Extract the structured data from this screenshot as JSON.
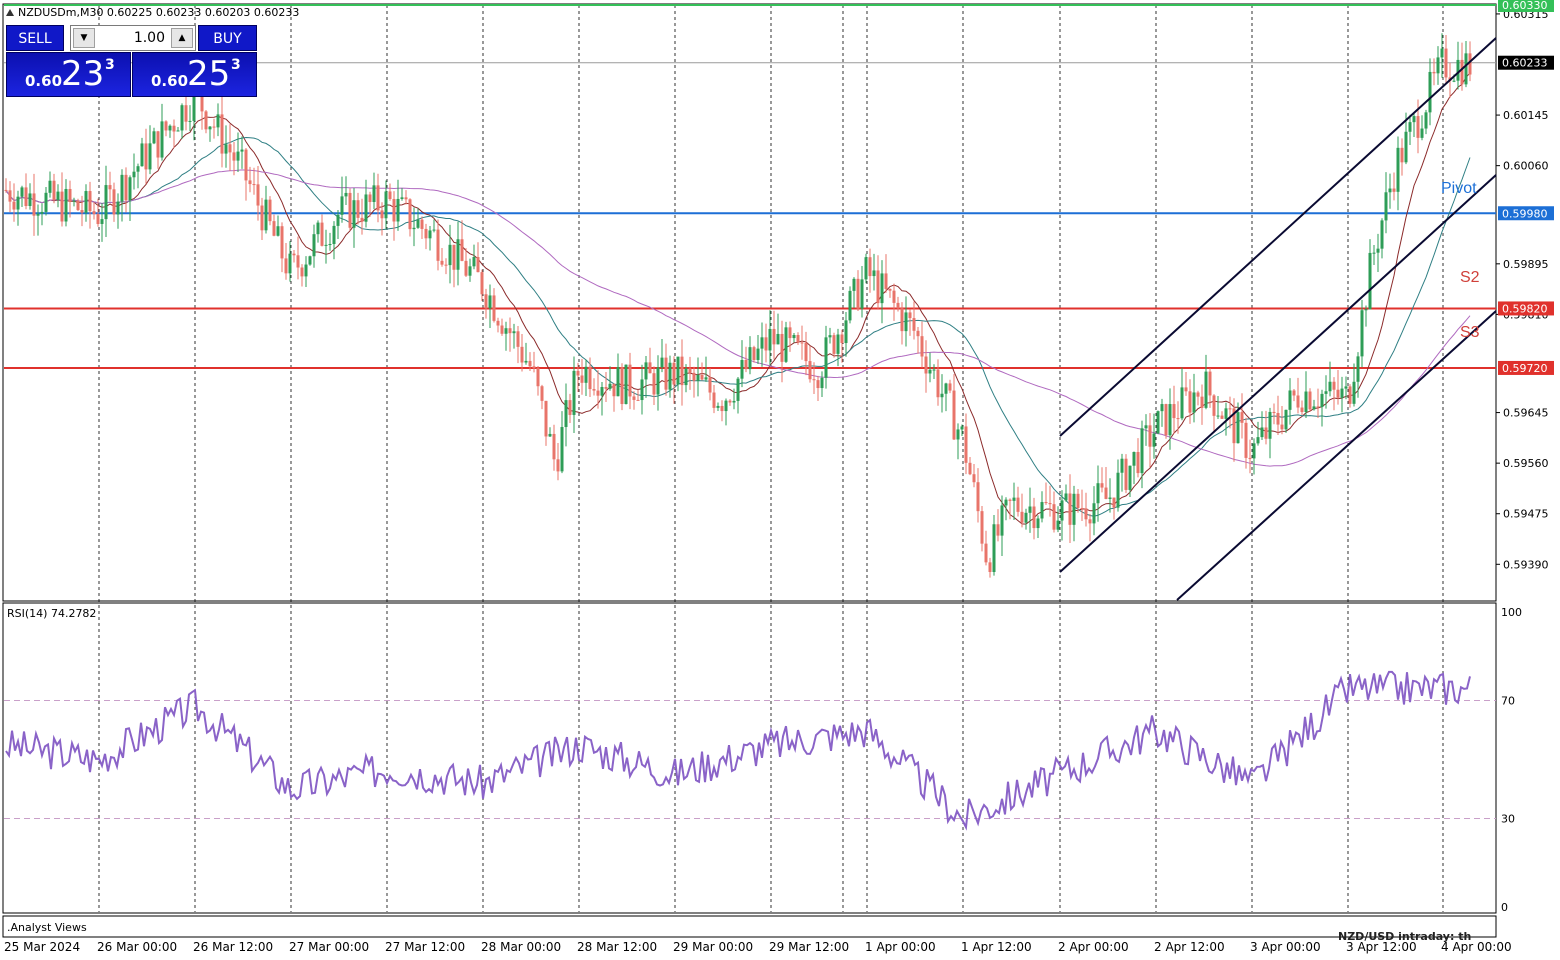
{
  "chart_title": "NZDUSDm,M30  0.60225 0.60233 0.60203 0.60233",
  "trade_panel": {
    "sell_label": "SELL",
    "buy_label": "BUY",
    "lot_value": "1.00",
    "sell_price_prefix": "0.60",
    "sell_price_big": "23",
    "sell_price_sup": "3",
    "buy_price_prefix": "0.60",
    "buy_price_big": "25",
    "buy_price_sup": "3"
  },
  "colors": {
    "bull": "#2e9d57",
    "bear": "#e8746a",
    "pivot_line": "#1c6fd6",
    "support_line": "#e0312c",
    "resistance_line": "#34c058",
    "channel": "#0a0a32",
    "rsi": "#8a63c8",
    "ma_fast": "#8b2a2a",
    "ma_mid": "#2f7f84",
    "ma_slow": "#b06ac0"
  },
  "chart_data": [
    {
      "type": "candlestick",
      "title": "NZDUSDm,M30  0.60225 0.60233 0.60203 0.60233",
      "ylim": [
        0.5933,
        0.6033
      ],
      "y_ticks": [
        "0.60315",
        "0.60145",
        "0.60060",
        "0.59895",
        "0.59810",
        "0.59645",
        "0.59560",
        "0.59475",
        "0.59390"
      ],
      "x_tick_labels": [
        "25 Mar 2024",
        "26 Mar 00:00",
        "26 Mar 12:00",
        "27 Mar 00:00",
        "27 Mar 12:00",
        "28 Mar 00:00",
        "28 Mar 12:00",
        "29 Mar 00:00",
        "29 Mar 12:00",
        "1 Apr 00:00",
        "1 Apr 12:00",
        "2 Apr 00:00",
        "2 Apr 12:00",
        "3 Apr 00:00",
        "3 Apr 12:00",
        "4 Apr 00:00"
      ],
      "close_path": [
        [
          "25 Mar 2024",
          0.6002
        ],
        [
          "26 Mar 00:00",
          0.5998
        ],
        [
          "26 Mar 06:00",
          0.6008
        ],
        [
          "26 Mar 12:00",
          0.6018
        ],
        [
          "26 Mar 18:00",
          0.6005
        ],
        [
          "27 Mar 00:00",
          0.5988
        ],
        [
          "27 Mar 06:00",
          0.5998
        ],
        [
          "27 Mar 12:00",
          0.6
        ],
        [
          "27 Mar 18:00",
          0.5994
        ],
        [
          "28 Mar 00:00",
          0.5986
        ],
        [
          "28 Mar 06:00",
          0.5972
        ],
        [
          "28 Mar 09:00",
          0.5956
        ],
        [
          "28 Mar 12:00",
          0.5972
        ],
        [
          "28 Mar 18:00",
          0.5969
        ],
        [
          "29 Mar 00:00",
          0.5971
        ],
        [
          "29 Mar 06:00",
          0.5967
        ],
        [
          "29 Mar 12:00",
          0.5977
        ],
        [
          "29 Mar 18:00",
          0.5972
        ],
        [
          "1 Apr 00:00",
          0.5988
        ],
        [
          "1 Apr 06:00",
          0.5978
        ],
        [
          "1 Apr 12:00",
          0.596
        ],
        [
          "1 Apr 15:00",
          0.594
        ],
        [
          "1 Apr 18:00",
          0.5949
        ],
        [
          "2 Apr 00:00",
          0.5948
        ],
        [
          "2 Apr 06:00",
          0.595
        ],
        [
          "2 Apr 12:00",
          0.5962
        ],
        [
          "2 Apr 18:00",
          0.5969
        ],
        [
          "3 Apr 00:00",
          0.5958
        ],
        [
          "3 Apr 06:00",
          0.5968
        ],
        [
          "3 Apr 12:00",
          0.5967
        ],
        [
          "3 Apr 15:00",
          0.599
        ],
        [
          "3 Apr 18:00",
          0.6006
        ],
        [
          "4 Apr 00:00",
          0.6023
        ]
      ],
      "last_price": 0.60233,
      "horizontal_levels": [
        {
          "label": "0.60330",
          "value": 0.6033,
          "kind": "resistance"
        },
        {
          "label": "0.60233",
          "value": 0.60233,
          "kind": "last"
        },
        {
          "label": "0.59980",
          "value": 0.5998,
          "kind": "pivot"
        },
        {
          "label": "0.59820",
          "value": 0.5982,
          "kind": "support"
        },
        {
          "label": "0.59720",
          "value": 0.5972,
          "kind": "support"
        }
      ],
      "annotations": [
        "Pivot",
        "S2",
        "S3"
      ]
    },
    {
      "type": "line",
      "title": "RSI(14) 74.2782",
      "ylim": [
        0,
        100
      ],
      "y_ticks": [
        "100",
        "70",
        "30",
        "0"
      ],
      "levels": [
        70,
        30
      ],
      "x": [
        "25 Mar 2024",
        "26 Mar 00:00",
        "26 Mar 12:00",
        "27 Mar 00:00",
        "27 Mar 12:00",
        "28 Mar 00:00",
        "28 Mar 12:00",
        "29 Mar 00:00",
        "29 Mar 12:00",
        "1 Apr 00:00",
        "1 Apr 12:00",
        "2 Apr 00:00",
        "2 Apr 12:00",
        "3 Apr 00:00",
        "3 Apr 12:00",
        "4 Apr 00:00"
      ],
      "values": [
        55,
        50,
        68,
        40,
        47,
        42,
        55,
        45,
        55,
        60,
        30,
        45,
        60,
        42,
        74,
        74.3
      ]
    }
  ],
  "annotation_labels": {
    "pivot": "Pivot",
    "s2": "S2",
    "s3": "S3"
  },
  "rsi_title": "RSI(14) 74.2782",
  "analyst_views": ".Analyst Views",
  "bottom_right_text": "NZD/USD intraday: th"
}
